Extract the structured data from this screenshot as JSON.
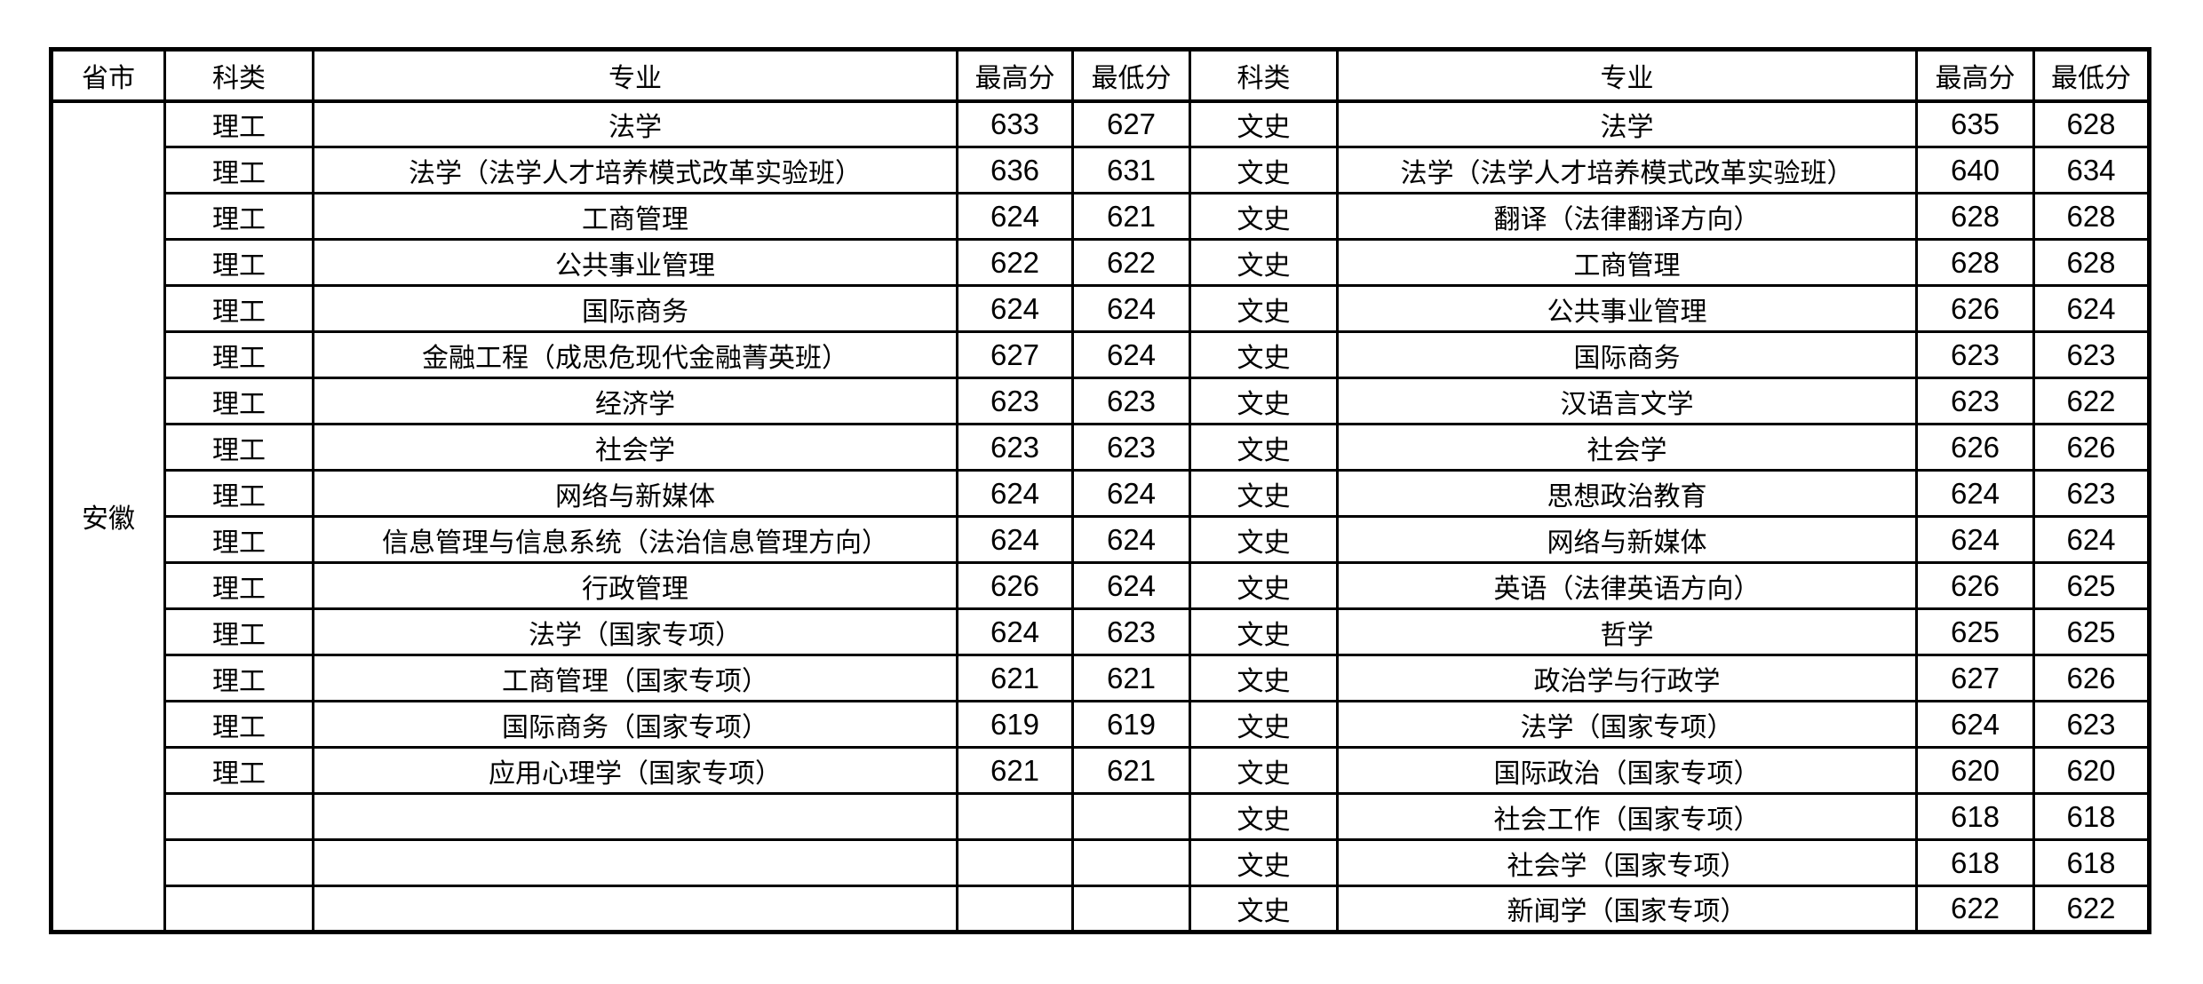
{
  "page": {
    "background": "#ffffff",
    "border_color": "#000000"
  },
  "table": {
    "headers": [
      "省市",
      "科类",
      "专业",
      "最高分",
      "最低分",
      "科类",
      "专业",
      "最高分",
      "最低分"
    ],
    "province": "安徽",
    "rows": [
      {
        "l_cat": "理工",
        "l_major": "法学",
        "l_max": "633",
        "l_min": "627",
        "r_cat": "文史",
        "r_major": "法学",
        "r_max": "635",
        "r_min": "628"
      },
      {
        "l_cat": "理工",
        "l_major": "法学（法学人才培养模式改革实验班）",
        "l_max": "636",
        "l_min": "631",
        "r_cat": "文史",
        "r_major": "法学（法学人才培养模式改革实验班）",
        "r_max": "640",
        "r_min": "634"
      },
      {
        "l_cat": "理工",
        "l_major": "工商管理",
        "l_max": "624",
        "l_min": "621",
        "r_cat": "文史",
        "r_major": "翻译（法律翻译方向）",
        "r_max": "628",
        "r_min": "628"
      },
      {
        "l_cat": "理工",
        "l_major": "公共事业管理",
        "l_max": "622",
        "l_min": "622",
        "r_cat": "文史",
        "r_major": "工商管理",
        "r_max": "628",
        "r_min": "628"
      },
      {
        "l_cat": "理工",
        "l_major": "国际商务",
        "l_max": "624",
        "l_min": "624",
        "r_cat": "文史",
        "r_major": "公共事业管理",
        "r_max": "626",
        "r_min": "624"
      },
      {
        "l_cat": "理工",
        "l_major": "金融工程（成思危现代金融菁英班）",
        "l_max": "627",
        "l_min": "624",
        "r_cat": "文史",
        "r_major": "国际商务",
        "r_max": "623",
        "r_min": "623"
      },
      {
        "l_cat": "理工",
        "l_major": "经济学",
        "l_max": "623",
        "l_min": "623",
        "r_cat": "文史",
        "r_major": "汉语言文学",
        "r_max": "623",
        "r_min": "622"
      },
      {
        "l_cat": "理工",
        "l_major": "社会学",
        "l_max": "623",
        "l_min": "623",
        "r_cat": "文史",
        "r_major": "社会学",
        "r_max": "626",
        "r_min": "626"
      },
      {
        "l_cat": "理工",
        "l_major": "网络与新媒体",
        "l_max": "624",
        "l_min": "624",
        "r_cat": "文史",
        "r_major": "思想政治教育",
        "r_max": "624",
        "r_min": "623"
      },
      {
        "l_cat": "理工",
        "l_major": "信息管理与信息系统（法治信息管理方向）",
        "l_max": "624",
        "l_min": "624",
        "r_cat": "文史",
        "r_major": "网络与新媒体",
        "r_max": "624",
        "r_min": "624"
      },
      {
        "l_cat": "理工",
        "l_major": "行政管理",
        "l_max": "626",
        "l_min": "624",
        "r_cat": "文史",
        "r_major": "英语（法律英语方向）",
        "r_max": "626",
        "r_min": "625"
      },
      {
        "l_cat": "理工",
        "l_major": "法学（国家专项）",
        "l_max": "624",
        "l_min": "623",
        "r_cat": "文史",
        "r_major": "哲学",
        "r_max": "625",
        "r_min": "625"
      },
      {
        "l_cat": "理工",
        "l_major": "工商管理（国家专项）",
        "l_max": "621",
        "l_min": "621",
        "r_cat": "文史",
        "r_major": "政治学与行政学",
        "r_max": "627",
        "r_min": "626"
      },
      {
        "l_cat": "理工",
        "l_major": "国际商务（国家专项）",
        "l_max": "619",
        "l_min": "619",
        "r_cat": "文史",
        "r_major": "法学（国家专项）",
        "r_max": "624",
        "r_min": "623"
      },
      {
        "l_cat": "理工",
        "l_major": "应用心理学（国家专项）",
        "l_max": "621",
        "l_min": "621",
        "r_cat": "文史",
        "r_major": "国际政治（国家专项）",
        "r_max": "620",
        "r_min": "620"
      },
      {
        "l_cat": "",
        "l_major": "",
        "l_max": "",
        "l_min": "",
        "r_cat": "文史",
        "r_major": "社会工作（国家专项）",
        "r_max": "618",
        "r_min": "618"
      },
      {
        "l_cat": "",
        "l_major": "",
        "l_max": "",
        "l_min": "",
        "r_cat": "文史",
        "r_major": "社会学（国家专项）",
        "r_max": "618",
        "r_min": "618"
      },
      {
        "l_cat": "",
        "l_major": "",
        "l_max": "",
        "l_min": "",
        "r_cat": "文史",
        "r_major": "新闻学（国家专项）",
        "r_max": "622",
        "r_min": "622"
      }
    ]
  }
}
